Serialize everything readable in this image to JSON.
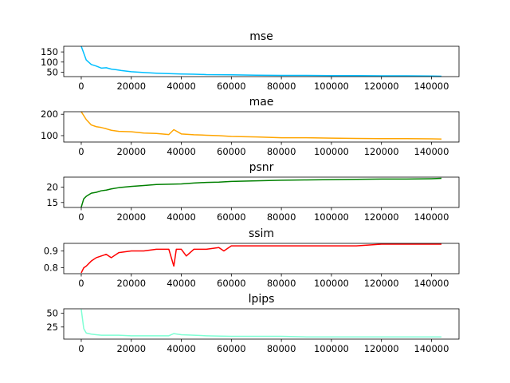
{
  "chart_data": [
    {
      "type": "line",
      "title": "mse",
      "color": "#00bfff",
      "xlim": [
        -7000,
        151000
      ],
      "ylim": [
        28,
        178
      ],
      "xticks": [
        0,
        20000,
        40000,
        60000,
        80000,
        100000,
        120000,
        140000
      ],
      "xtick_labels": [
        "0",
        "20000",
        "40000",
        "60000",
        "80000",
        "100000",
        "120000",
        "140000"
      ],
      "yticks": [
        50,
        100,
        150
      ],
      "ytick_labels": [
        "50",
        "100",
        "150"
      ],
      "x": [
        0,
        2000,
        4000,
        6000,
        8000,
        10000,
        12000,
        14000,
        16000,
        20000,
        25000,
        30000,
        35000,
        40000,
        45000,
        50000,
        60000,
        70000,
        80000,
        90000,
        100000,
        110000,
        120000,
        130000,
        140000,
        144000
      ],
      "y": [
        178,
        110,
        88,
        80,
        70,
        72,
        65,
        62,
        58,
        52,
        48,
        45,
        43,
        41,
        40,
        38,
        37,
        35,
        34,
        34,
        33,
        33,
        32,
        32,
        31,
        30
      ]
    },
    {
      "type": "line",
      "title": "mae",
      "color": "#ffa500",
      "xlim": [
        -7000,
        151000
      ],
      "ylim": [
        70,
        212
      ],
      "xticks": [
        0,
        20000,
        40000,
        60000,
        80000,
        100000,
        120000,
        140000
      ],
      "xtick_labels": [
        "0",
        "20000",
        "40000",
        "60000",
        "80000",
        "100000",
        "120000",
        "140000"
      ],
      "yticks": [
        100,
        200
      ],
      "ytick_labels": [
        "100",
        "200"
      ],
      "x": [
        0,
        2000,
        4000,
        6000,
        8000,
        10000,
        12000,
        15000,
        20000,
        25000,
        30000,
        35000,
        37000,
        40000,
        45000,
        50000,
        55000,
        60000,
        70000,
        80000,
        90000,
        100000,
        110000,
        120000,
        130000,
        140000,
        144000
      ],
      "y": [
        212,
        175,
        150,
        142,
        138,
        132,
        125,
        120,
        118,
        112,
        110,
        105,
        128,
        108,
        104,
        102,
        100,
        96,
        94,
        90,
        90,
        88,
        87,
        86,
        86,
        85,
        84
      ]
    },
    {
      "type": "line",
      "title": "psnr",
      "color": "#008000",
      "xlim": [
        -7000,
        151000
      ],
      "ylim": [
        13.4,
        23.2
      ],
      "xticks": [
        0,
        20000,
        40000,
        60000,
        80000,
        100000,
        120000,
        140000
      ],
      "xtick_labels": [
        "0",
        "20000",
        "40000",
        "60000",
        "80000",
        "100000",
        "120000",
        "140000"
      ],
      "yticks": [
        15,
        20
      ],
      "ytick_labels": [
        "15",
        "20"
      ],
      "x": [
        0,
        1000,
        2000,
        4000,
        6000,
        8000,
        10000,
        12000,
        15000,
        20000,
        25000,
        30000,
        35000,
        40000,
        45000,
        50000,
        55000,
        60000,
        70000,
        80000,
        90000,
        100000,
        110000,
        120000,
        130000,
        140000,
        144000
      ],
      "y": [
        13.5,
        16.2,
        17.0,
        18.0,
        18.3,
        18.8,
        19.0,
        19.4,
        19.8,
        20.2,
        20.5,
        20.8,
        20.9,
        21.0,
        21.3,
        21.5,
        21.6,
        21.8,
        22.0,
        22.2,
        22.3,
        22.4,
        22.5,
        22.6,
        22.6,
        22.7,
        22.8
      ]
    },
    {
      "type": "line",
      "title": "ssim",
      "color": "#ff0000",
      "xlim": [
        -7000,
        151000
      ],
      "ylim": [
        0.765,
        0.945
      ],
      "xticks": [
        0,
        20000,
        40000,
        60000,
        80000,
        100000,
        120000,
        140000
      ],
      "xtick_labels": [
        "0",
        "20000",
        "40000",
        "60000",
        "80000",
        "100000",
        "120000",
        "140000"
      ],
      "yticks": [
        0.8,
        0.9
      ],
      "ytick_labels": [
        "0.8",
        "0.9"
      ],
      "x": [
        0,
        1000,
        2000,
        4000,
        6000,
        8000,
        10000,
        12000,
        15000,
        20000,
        25000,
        30000,
        35000,
        37000,
        38000,
        40000,
        42000,
        45000,
        50000,
        55000,
        57000,
        60000,
        70000,
        80000,
        90000,
        100000,
        110000,
        120000,
        130000,
        140000,
        144000
      ],
      "y": [
        0.77,
        0.8,
        0.81,
        0.84,
        0.86,
        0.87,
        0.88,
        0.86,
        0.89,
        0.9,
        0.9,
        0.91,
        0.91,
        0.81,
        0.91,
        0.91,
        0.87,
        0.91,
        0.91,
        0.92,
        0.9,
        0.93,
        0.93,
        0.93,
        0.93,
        0.93,
        0.93,
        0.94,
        0.94,
        0.94,
        0.94
      ]
    },
    {
      "type": "line",
      "title": "lpips",
      "color": "#7fffd4",
      "xlim": [
        -7000,
        151000
      ],
      "ylim": [
        3,
        58
      ],
      "xticks": [
        0,
        20000,
        40000,
        60000,
        80000,
        100000,
        120000,
        140000
      ],
      "xtick_labels": [
        "0",
        "20000",
        "40000",
        "60000",
        "80000",
        "100000",
        "120000",
        "140000"
      ],
      "yticks": [
        25,
        50
      ],
      "ytick_labels": [
        "25",
        "50"
      ],
      "x": [
        0,
        1000,
        2000,
        4000,
        6000,
        8000,
        10000,
        15000,
        20000,
        25000,
        30000,
        35000,
        37000,
        40000,
        45000,
        50000,
        60000,
        70000,
        80000,
        90000,
        100000,
        110000,
        120000,
        130000,
        140000,
        144000
      ],
      "y": [
        57,
        22,
        14,
        12,
        11,
        10,
        10,
        10,
        9,
        9,
        9,
        9,
        13,
        11,
        10,
        9,
        8,
        8,
        8,
        7,
        7,
        7,
        7,
        7,
        7,
        7
      ]
    }
  ]
}
